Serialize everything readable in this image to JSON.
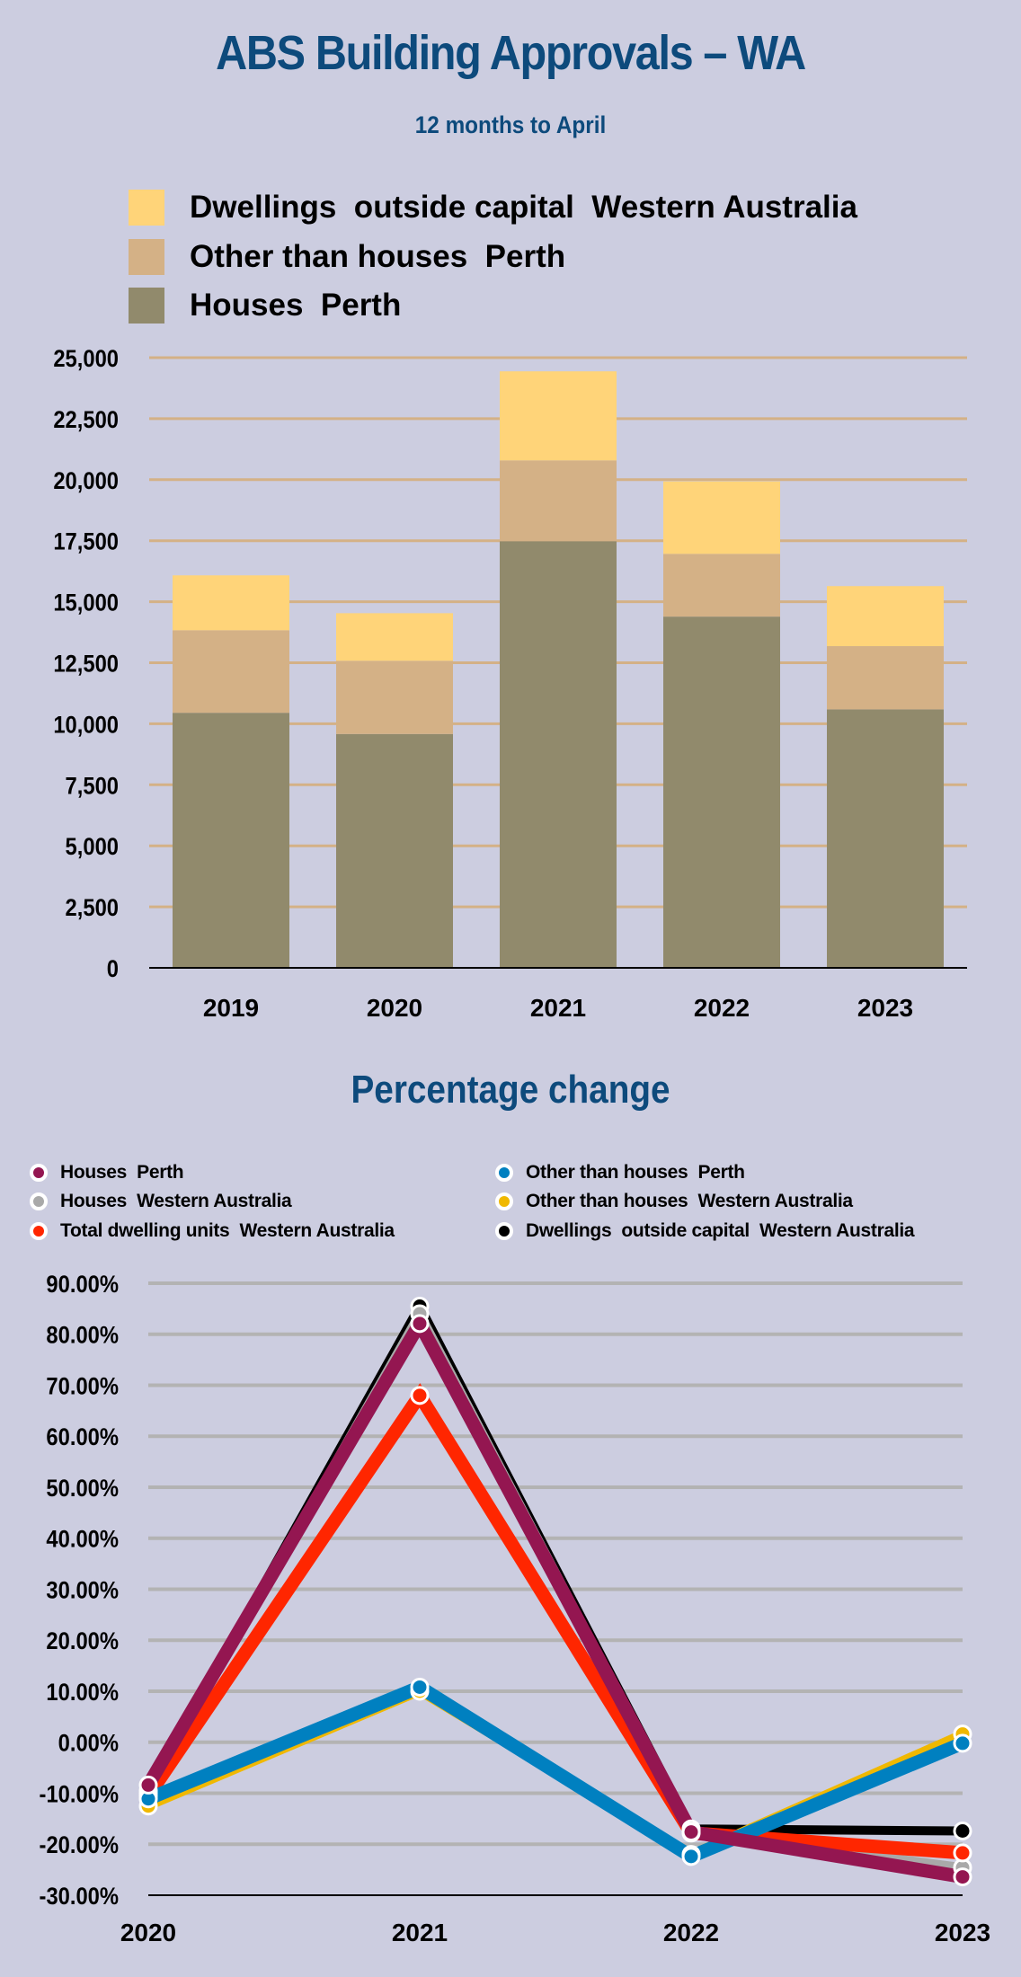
{
  "title": "ABS Building Approvals – WA",
  "subtitle": "12 months to April",
  "colors": {
    "background": "#cccde0",
    "title": "#0d4a7c",
    "gridlines_bar": "#d4b186",
    "gridlines_line": "#b3b3b3"
  },
  "chart_data": [
    {
      "type": "bar",
      "stacked": true,
      "title": "",
      "categories": [
        "2019",
        "2020",
        "2021",
        "2022",
        "2023"
      ],
      "series": [
        {
          "name": "Houses  Perth",
          "color": "#918a6c",
          "values": [
            10450,
            9580,
            17480,
            14390,
            10590
          ]
        },
        {
          "name": "Other than houses  Perth",
          "color": "#d4b186",
          "values": [
            3380,
            3000,
            3310,
            2570,
            2590
          ]
        },
        {
          "name": "Dwellings  outside capital  Western Australia",
          "color": "#ffd479",
          "values": [
            2250,
            1950,
            3650,
            2970,
            2460
          ]
        }
      ],
      "legend_order": [
        2,
        1,
        0
      ],
      "legend_position": "top",
      "ylim": [
        0,
        25000
      ],
      "yticks": [
        "0",
        "2,500",
        "5,000",
        "7,500",
        "10,000",
        "12,500",
        "15,000",
        "17,500",
        "20,000",
        "22,500",
        "25,000"
      ],
      "grid": true
    },
    {
      "type": "line",
      "title": "Percentage change",
      "categories": [
        "2020",
        "2021",
        "2022",
        "2023"
      ],
      "series": [
        {
          "name": "Houses  Perth",
          "color": "#941651",
          "values": [
            -8.4,
            82.1,
            -17.6,
            -26.4
          ]
        },
        {
          "name": "Other than houses  Perth",
          "color": "#0080c0",
          "values": [
            -11.1,
            10.8,
            -22.4,
            -0.2
          ]
        },
        {
          "name": "Houses  Western Australia",
          "color": "#a9a9a9",
          "values": [
            -10.0,
            84.0,
            -17.5,
            -24.6
          ]
        },
        {
          "name": "Other than houses  Western Australia",
          "color": "#f0b800",
          "values": [
            -12.5,
            10.0,
            -22.0,
            1.6
          ]
        },
        {
          "name": "Total dwelling units  Western Australia",
          "color": "#ff2600",
          "values": [
            -10.5,
            68.0,
            -17.8,
            -21.7
          ]
        },
        {
          "name": "Dwellings  outside capital  Western Australia",
          "color": "#000000",
          "values": [
            -9.5,
            85.5,
            -17.0,
            -17.4
          ]
        }
      ],
      "draw_order": [
        5,
        2,
        3,
        4,
        1,
        0
      ],
      "legend_position": "top",
      "ylim": [
        -30,
        90
      ],
      "yticks": [
        "-30.00%",
        "-20.00%",
        "-10.00%",
        "0.00%",
        "10.00%",
        "20.00%",
        "30.00%",
        "40.00%",
        "50.00%",
        "60.00%",
        "70.00%",
        "80.00%",
        "90.00%"
      ],
      "grid": true
    }
  ]
}
